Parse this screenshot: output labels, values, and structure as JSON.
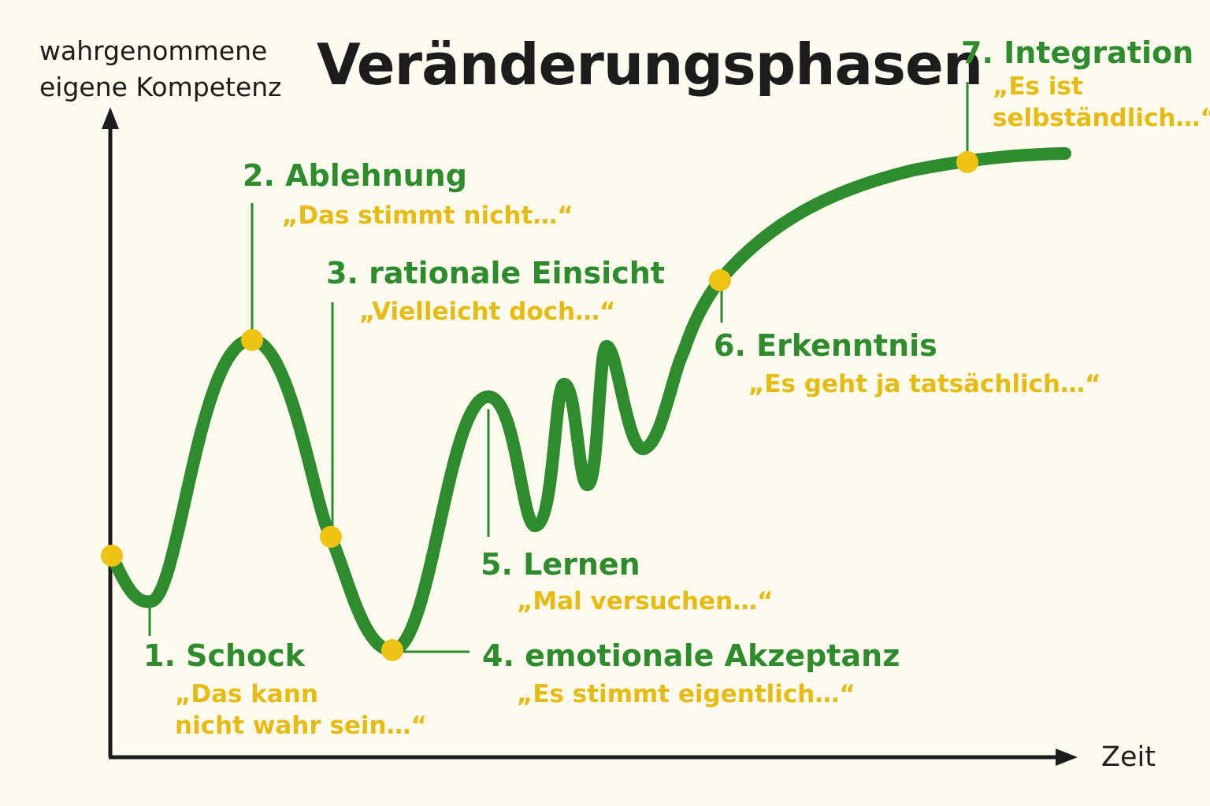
{
  "title": "Veränderungsphasen",
  "y_axis_label": "wahrgenommene\neigene Kompetenz",
  "x_axis_label": "Zeit",
  "colors": {
    "curve": "#2e8b2e",
    "marker": "#efc314",
    "phase_name": "#2e8b2e",
    "quote": "#e8bb12",
    "axis": "#1c1c1c",
    "background": "#fdfbf0"
  },
  "phases": [
    {
      "name": "1. Schock",
      "quote": "„Das kann\nnicht wahr sein…“"
    },
    {
      "name": "2. Ablehnung",
      "quote": "„Das stimmt nicht…“"
    },
    {
      "name": "3. rationale Einsicht",
      "quote": "„Vielleicht doch…“"
    },
    {
      "name": "4. emotionale Akzeptanz",
      "quote": "„Es stimmt eigentlich…“"
    },
    {
      "name": "5. Lernen",
      "quote": "„Mal versuchen…“"
    },
    {
      "name": "6. Erkenntnis",
      "quote": "„Es geht ja tatsächlich…“"
    },
    {
      "name": "7. Integration",
      "quote": "„Es ist\nselbständlich…“"
    }
  ]
}
